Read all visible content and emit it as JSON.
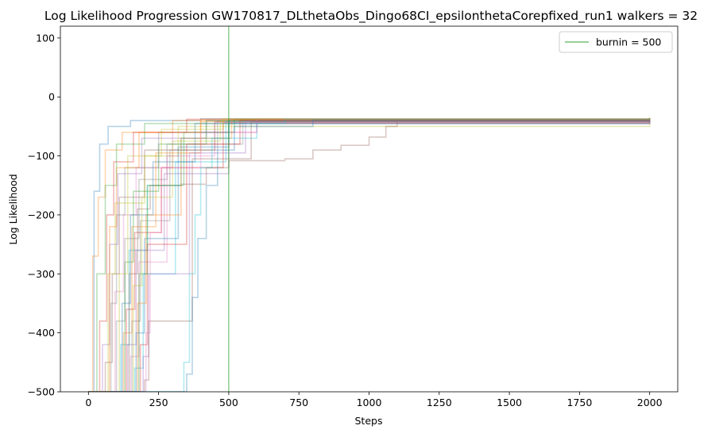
{
  "chart_data": {
    "type": "line",
    "title": "Log Likelihood Progression GW170817_DLthetaObs_Dingo68CI_epsilonthetaCorepfixed_run1 walkers = 32",
    "xlabel": "Steps",
    "ylabel": "Log Likelihood",
    "xlim": [
      -100,
      2100
    ],
    "ylim": [
      -500,
      120
    ],
    "xticks": [
      0,
      250,
      500,
      750,
      1000,
      1250,
      1500,
      1750,
      2000
    ],
    "yticks": [
      -500,
      -400,
      -300,
      -200,
      -100,
      0,
      100
    ],
    "xtick_labels": [
      "0",
      "250",
      "500",
      "750",
      "1000",
      "1250",
      "1500",
      "1750",
      "2000"
    ],
    "ytick_labels": [
      "−500",
      "−400",
      "−300",
      "−200",
      "−100",
      "0",
      "100"
    ],
    "grid": false,
    "legend": {
      "position": "top-right",
      "entries": [
        "burnin = 500"
      ]
    },
    "burnin": {
      "x": 500,
      "label": "burnin = 500",
      "color": "#2ca02c"
    },
    "walker_count": 32,
    "colors": [
      "#1f77b4",
      "#ff7f0e",
      "#2ca02c",
      "#d62728",
      "#9467bd",
      "#8c564b",
      "#e377c2",
      "#7f7f7f",
      "#bcbd22",
      "#17becf"
    ],
    "plateau": -35,
    "series": [
      {
        "points": [
          [
            0,
            -500
          ],
          [
            20,
            -160
          ],
          [
            40,
            -80
          ],
          [
            70,
            -50
          ],
          [
            150,
            -40
          ],
          [
            400,
            -37
          ],
          [
            2000,
            -37
          ]
        ]
      },
      {
        "points": [
          [
            0,
            -500
          ],
          [
            15,
            -270
          ],
          [
            35,
            -170
          ],
          [
            60,
            -90
          ],
          [
            120,
            -60
          ],
          [
            300,
            -40
          ],
          [
            2000,
            -36
          ]
        ]
      },
      {
        "points": [
          [
            0,
            -500
          ],
          [
            30,
            -300
          ],
          [
            60,
            -150
          ],
          [
            100,
            -80
          ],
          [
            200,
            -45
          ],
          [
            2000,
            -35
          ]
        ]
      },
      {
        "points": [
          [
            0,
            -500
          ],
          [
            40,
            -380
          ],
          [
            65,
            -200
          ],
          [
            90,
            -110
          ],
          [
            160,
            -60
          ],
          [
            350,
            -38
          ],
          [
            2000,
            -37
          ]
        ]
      },
      {
        "points": [
          [
            0,
            -500
          ],
          [
            50,
            -420
          ],
          [
            75,
            -250
          ],
          [
            105,
            -130
          ],
          [
            190,
            -70
          ],
          [
            420,
            -40
          ],
          [
            2000,
            -38
          ]
        ]
      },
      {
        "points": [
          [
            0,
            -500
          ],
          [
            60,
            -450
          ],
          [
            85,
            -300
          ],
          [
            110,
            -170
          ],
          [
            200,
            -90
          ],
          [
            450,
            -42
          ],
          [
            2000,
            -36
          ]
        ]
      },
      {
        "points": [
          [
            0,
            -500
          ],
          [
            70,
            -500
          ],
          [
            95,
            -330
          ],
          [
            125,
            -200
          ],
          [
            170,
            -120
          ],
          [
            300,
            -60
          ],
          [
            600,
            -38
          ],
          [
            2000,
            -40
          ]
        ]
      },
      {
        "points": [
          [
            0,
            -500
          ],
          [
            75,
            -500
          ],
          [
            100,
            -380
          ],
          [
            130,
            -240
          ],
          [
            180,
            -140
          ],
          [
            280,
            -80
          ],
          [
            550,
            -39
          ],
          [
            2000,
            -36
          ]
        ]
      },
      {
        "points": [
          [
            0,
            -500
          ],
          [
            80,
            -500
          ],
          [
            110,
            -300
          ],
          [
            140,
            -180
          ],
          [
            200,
            -100
          ],
          [
            320,
            -50
          ],
          [
            2000,
            -37
          ]
        ]
      },
      {
        "points": [
          [
            0,
            -500
          ],
          [
            85,
            -500
          ],
          [
            115,
            -420
          ],
          [
            145,
            -260
          ],
          [
            210,
            -150
          ],
          [
            330,
            -70
          ],
          [
            600,
            -40
          ],
          [
            2000,
            -38
          ]
        ]
      },
      {
        "points": [
          [
            0,
            -500
          ],
          [
            90,
            -500
          ],
          [
            120,
            -350
          ],
          [
            150,
            -200
          ],
          [
            230,
            -110
          ],
          [
            380,
            -45
          ],
          [
            2000,
            -36
          ]
        ]
      },
      {
        "points": [
          [
            0,
            -500
          ],
          [
            95,
            -500
          ],
          [
            125,
            -400
          ],
          [
            155,
            -220
          ],
          [
            240,
            -95
          ],
          [
            400,
            -42
          ],
          [
            2000,
            -39
          ]
        ]
      },
      {
        "points": [
          [
            0,
            -500
          ],
          [
            100,
            -500
          ],
          [
            130,
            -280
          ],
          [
            160,
            -160
          ],
          [
            250,
            -80
          ],
          [
            420,
            -40
          ],
          [
            2000,
            -37
          ]
        ]
      },
      {
        "points": [
          [
            0,
            -500
          ],
          [
            105,
            -500
          ],
          [
            135,
            -360
          ],
          [
            165,
            -230
          ],
          [
            260,
            -120
          ],
          [
            480,
            -44
          ],
          [
            2000,
            -38
          ]
        ]
      },
      {
        "points": [
          [
            0,
            -500
          ],
          [
            110,
            -500
          ],
          [
            140,
            -420
          ],
          [
            170,
            -260
          ],
          [
            270,
            -130
          ],
          [
            500,
            -45
          ],
          [
            2000,
            -36
          ]
        ]
      },
      {
        "points": [
          [
            0,
            -500
          ],
          [
            115,
            -500
          ],
          [
            145,
            -300
          ],
          [
            175,
            -190
          ],
          [
            220,
            -150
          ],
          [
            330,
            -148
          ],
          [
            420,
            -120
          ],
          [
            500,
            -108
          ],
          [
            700,
            -105
          ],
          [
            800,
            -90
          ],
          [
            900,
            -82
          ],
          [
            1000,
            -68
          ],
          [
            1060,
            -50
          ],
          [
            1100,
            -40
          ],
          [
            2000,
            -38
          ]
        ]
      },
      {
        "points": [
          [
            0,
            -500
          ],
          [
            120,
            -500
          ],
          [
            150,
            -440
          ],
          [
            180,
            -280
          ],
          [
            280,
            -100
          ],
          [
            450,
            -43
          ],
          [
            2000,
            -37
          ]
        ]
      },
      {
        "points": [
          [
            0,
            -500
          ],
          [
            125,
            -500
          ],
          [
            155,
            -380
          ],
          [
            185,
            -210
          ],
          [
            290,
            -90
          ],
          [
            460,
            -41
          ],
          [
            2000,
            -36
          ]
        ]
      },
      {
        "points": [
          [
            0,
            -500
          ],
          [
            130,
            -500
          ],
          [
            160,
            -320
          ],
          [
            190,
            -170
          ],
          [
            300,
            -75
          ],
          [
            470,
            -40
          ],
          [
            2000,
            -35
          ]
        ]
      },
      {
        "points": [
          [
            0,
            -500
          ],
          [
            135,
            -500
          ],
          [
            165,
            -460
          ],
          [
            195,
            -300
          ],
          [
            310,
            -110
          ],
          [
            490,
            -42
          ],
          [
            2000,
            -39
          ]
        ]
      },
      {
        "points": [
          [
            0,
            -500
          ],
          [
            140,
            -500
          ],
          [
            170,
            -400
          ],
          [
            200,
            -240
          ],
          [
            320,
            -85
          ],
          [
            500,
            -40
          ],
          [
            2000,
            -36
          ]
        ]
      },
      {
        "points": [
          [
            0,
            -500
          ],
          [
            145,
            -500
          ],
          [
            175,
            -350
          ],
          [
            205,
            -200
          ],
          [
            330,
            -70
          ],
          [
            510,
            -39
          ],
          [
            2000,
            -37
          ]
        ]
      },
      {
        "points": [
          [
            0,
            -500
          ],
          [
            150,
            -500
          ],
          [
            180,
            -300
          ],
          [
            210,
            -150
          ],
          [
            340,
            -60
          ],
          [
            520,
            -38
          ],
          [
            2000,
            -36
          ]
        ]
      },
      {
        "points": [
          [
            0,
            -500
          ],
          [
            160,
            -500
          ],
          [
            185,
            -420
          ],
          [
            210,
            -250
          ],
          [
            350,
            -80
          ],
          [
            540,
            -40
          ],
          [
            2000,
            -38
          ]
        ]
      },
      {
        "points": [
          [
            0,
            -500
          ],
          [
            170,
            -500
          ],
          [
            195,
            -440
          ],
          [
            215,
            -300
          ],
          [
            360,
            -95
          ],
          [
            560,
            -41
          ],
          [
            2000,
            -37
          ]
        ]
      },
      {
        "points": [
          [
            0,
            -500
          ],
          [
            180,
            -500
          ],
          [
            200,
            -480
          ],
          [
            215,
            -380
          ],
          [
            370,
            -105
          ],
          [
            580,
            -42
          ],
          [
            2000,
            -36
          ]
        ]
      },
      {
        "points": [
          [
            0,
            -500
          ],
          [
            190,
            -500
          ],
          [
            205,
            -400
          ],
          [
            220,
            -230
          ],
          [
            260,
            -120
          ],
          [
            400,
            -60
          ],
          [
            600,
            -38
          ],
          [
            2000,
            -37
          ]
        ]
      },
      {
        "points": [
          [
            0,
            -500
          ],
          [
            60,
            -500
          ],
          [
            80,
            -350
          ],
          [
            100,
            -200
          ],
          [
            130,
            -120
          ],
          [
            250,
            -60
          ],
          [
            500,
            -38
          ],
          [
            2000,
            -36
          ]
        ]
      },
      {
        "points": [
          [
            0,
            -500
          ],
          [
            50,
            -500
          ],
          [
            70,
            -300
          ],
          [
            95,
            -180
          ],
          [
            140,
            -100
          ],
          [
            260,
            -55
          ],
          [
            480,
            -37
          ],
          [
            2000,
            -35
          ]
        ]
      },
      {
        "points": [
          [
            0,
            -500
          ],
          [
            320,
            -500
          ],
          [
            340,
            -450
          ],
          [
            360,
            -300
          ],
          [
            380,
            -200
          ],
          [
            400,
            -120
          ],
          [
            440,
            -70
          ],
          [
            500,
            -45
          ],
          [
            700,
            -38
          ],
          [
            2000,
            -37
          ]
        ]
      },
      {
        "points": [
          [
            0,
            -500
          ],
          [
            330,
            -500
          ],
          [
            350,
            -470
          ],
          [
            370,
            -340
          ],
          [
            390,
            -240
          ],
          [
            420,
            -150
          ],
          [
            460,
            -90
          ],
          [
            520,
            -50
          ],
          [
            800,
            -39
          ],
          [
            2000,
            -40
          ]
        ]
      },
      {
        "points": [
          [
            0,
            -500
          ],
          [
            55,
            -500
          ],
          [
            75,
            -220
          ],
          [
            100,
            -120
          ],
          [
            180,
            -60
          ],
          [
            400,
            -38
          ],
          [
            2000,
            -37
          ]
        ]
      }
    ]
  }
}
